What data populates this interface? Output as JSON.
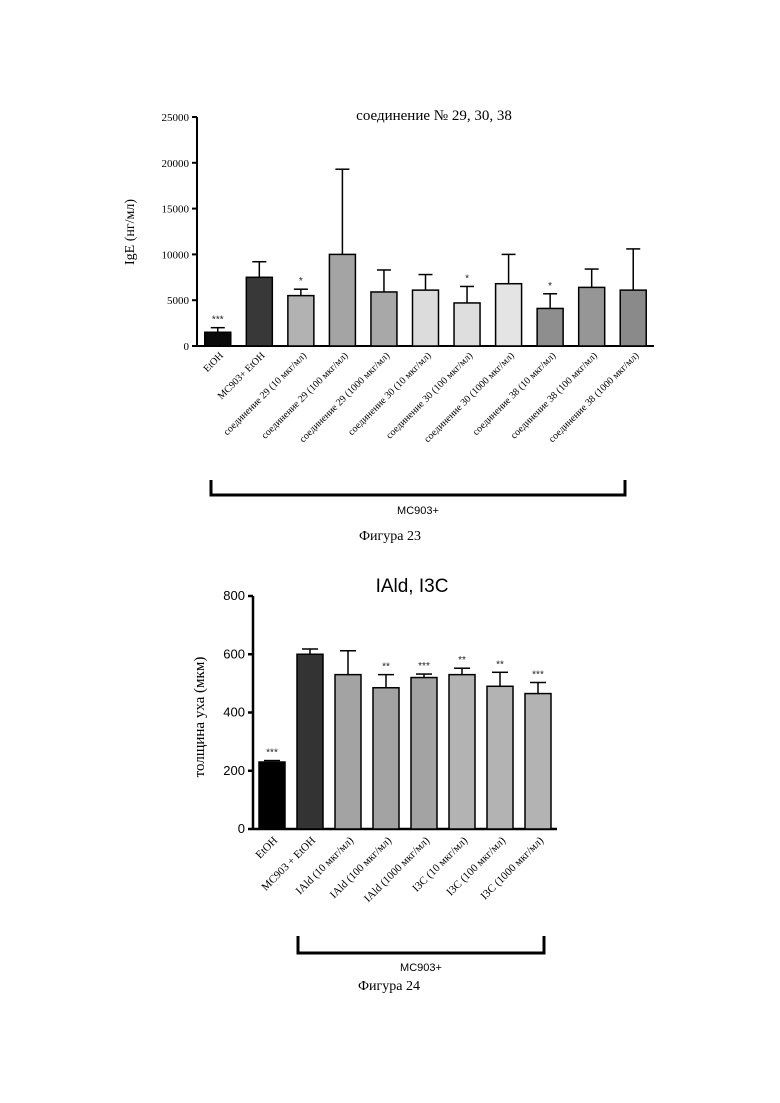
{
  "figures": [
    {
      "caption": "Фигура 23",
      "bracket_label": "MC903+"
    },
    {
      "caption": "Фигура 24",
      "bracket_label": "MC903+"
    }
  ],
  "chart_data": [
    {
      "type": "bar",
      "title": "соединение № 29, 30, 38",
      "ylabel": "IgE (нг/мл)",
      "ylim": [
        0,
        25000
      ],
      "yticks": [
        "0",
        "5000",
        "10000",
        "15000",
        "20000",
        "25000"
      ],
      "categories": [
        "EtOH",
        "MC903+ EtOH",
        "соединение 29 (10 мкг/мл)",
        "соединение 29 (100 мкг/мл)",
        "соединение 29 (1000 мкг/мл)",
        "соединение 30 (10 мкг/мл)",
        "соединение 30 (100 мкг/мл)",
        "соединение 30 (1000 мкг/мл)",
        "соединение 38 (10 мкг/мл)",
        "соединение 38 (100 мкг/мл)",
        "соединение 38 (1000 мкг/мл)"
      ],
      "values": [
        1500,
        7500,
        5500,
        10000,
        5900,
        6100,
        4700,
        6800,
        4100,
        6400,
        6100
      ],
      "errors": [
        500,
        1700,
        700,
        9300,
        2400,
        1700,
        1800,
        3200,
        1600,
        2000,
        4500
      ],
      "significance": [
        "***",
        "",
        "*",
        "",
        "",
        "",
        "*",
        "",
        "*",
        "",
        ""
      ],
      "colors": [
        "#0a0a0a",
        "#383838",
        "#b2b2b2",
        "#a4a4a4",
        "#a8a8a8",
        "#dcdcdc",
        "#dedede",
        "#e4e4e4",
        "#8e8e8e",
        "#969696",
        "#8a8a8a"
      ],
      "grid": false
    },
    {
      "type": "bar",
      "title": "IAld, I3C",
      "ylabel": "толщина уха (мкм)",
      "ylim": [
        0,
        800
      ],
      "yticks": [
        "0",
        "200",
        "400",
        "600",
        "800"
      ],
      "categories": [
        "EtOH",
        "MC903 + EtOH",
        "IAld (10 мкг/мл)",
        "IAld (100 мкг/мл)",
        "IAld (1000 мкг/мл)",
        "I3C (10 мкг/мл)",
        "I3C (100 мкг/мл)",
        "I3C (1000 мкг/мл)"
      ],
      "values": [
        230,
        600,
        530,
        485,
        520,
        530,
        490,
        465
      ],
      "errors": [
        5,
        18,
        82,
        45,
        12,
        22,
        48,
        38
      ],
      "significance": [
        "***",
        "",
        "",
        "**",
        "***",
        "**",
        "**",
        "***"
      ],
      "colors": [
        "#000000",
        "#333333",
        "#a3a3a3",
        "#a3a3a3",
        "#a3a3a3",
        "#b3b3b3",
        "#b3b3b3",
        "#b3b3b3"
      ],
      "grid": false
    }
  ]
}
